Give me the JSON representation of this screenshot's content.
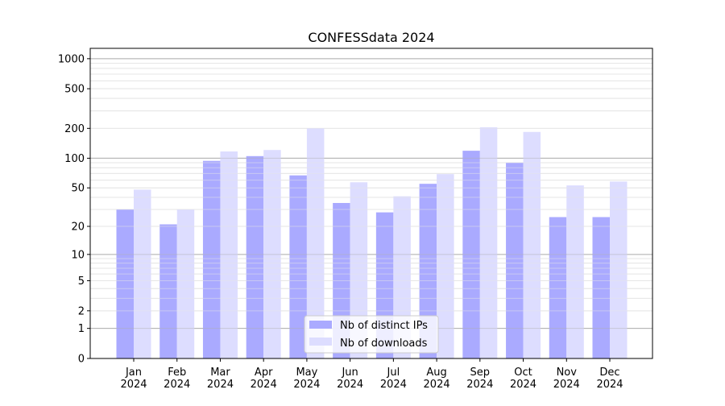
{
  "chart_data": {
    "type": "bar",
    "title": "CONFESSdata 2024",
    "xlabel": "",
    "ylabel": "",
    "yscale": "symlog (log10(1+y))",
    "ylim": [
      0,
      1270
    ],
    "yticks": [
      0,
      1,
      2,
      5,
      10,
      20,
      50,
      100,
      200,
      500,
      1000
    ],
    "ytick_labels": [
      "0",
      "1",
      "2",
      "5",
      "10",
      "20",
      "50",
      "100",
      "200",
      "500",
      "1000"
    ],
    "categories": [
      [
        "Jan",
        "2024"
      ],
      [
        "Feb",
        "2024"
      ],
      [
        "Mar",
        "2024"
      ],
      [
        "Apr",
        "2024"
      ],
      [
        "May",
        "2024"
      ],
      [
        "Jun",
        "2024"
      ],
      [
        "Jul",
        "2024"
      ],
      [
        "Aug",
        "2024"
      ],
      [
        "Sep",
        "2024"
      ],
      [
        "Oct",
        "2024"
      ],
      [
        "Nov",
        "2024"
      ],
      [
        "Dec",
        "2024"
      ]
    ],
    "grid": true,
    "legend_position": "bottom-center",
    "series": [
      {
        "name": "Nb of distinct IPs",
        "color": "#aaaaff",
        "values": [
          30,
          21,
          94,
          105,
          67,
          35,
          28,
          55,
          119,
          90,
          25,
          25
        ]
      },
      {
        "name": "Nb of downloads",
        "color": "#ddddff",
        "values": [
          48,
          30,
          117,
          121,
          201,
          57,
          41,
          69,
          205,
          184,
          53,
          58
        ]
      }
    ]
  }
}
